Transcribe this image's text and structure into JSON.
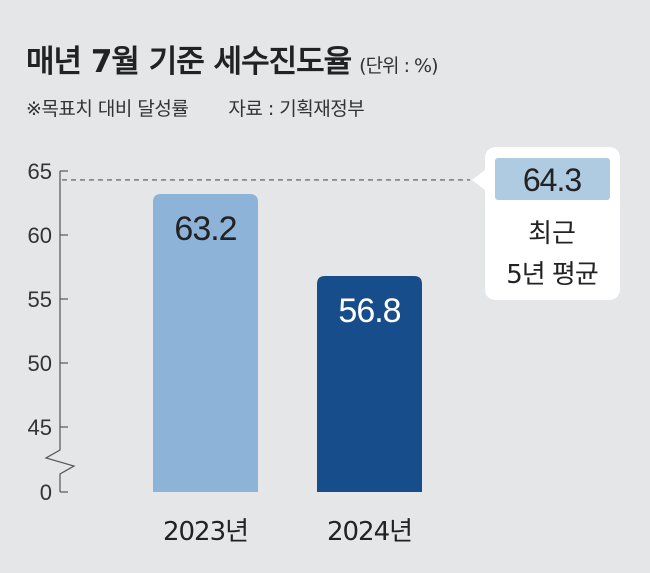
{
  "header": {
    "title": "매년 7월 기준 세수진도율",
    "unit": "(단위 : %)",
    "note": "※목표치 대비 달성률",
    "source": "자료 : 기획재정부"
  },
  "chart_data": {
    "type": "bar",
    "title": "매년 7월 기준 세수진도율",
    "categories": [
      "2023년",
      "2024년"
    ],
    "values": [
      63.2,
      56.8
    ],
    "value_labels": [
      "63.2",
      "56.8"
    ],
    "colors": [
      "#8eb3d8",
      "#184d8c"
    ],
    "label_colors": [
      "#222222",
      "#ffffff"
    ],
    "yticks": [
      0,
      45,
      50,
      55,
      60,
      65
    ],
    "ytick_labels": [
      "0",
      "45",
      "50",
      "55",
      "60",
      "65"
    ],
    "ylim": [
      0,
      65
    ],
    "axis_break": [
      0,
      45
    ],
    "reference": {
      "value": 64.3,
      "label": "64.3",
      "caption_line1": "최근",
      "caption_line2": "5년 평균",
      "box_color": "#aecbe2"
    },
    "xlabel": "",
    "ylabel": "",
    "grid": false
  }
}
